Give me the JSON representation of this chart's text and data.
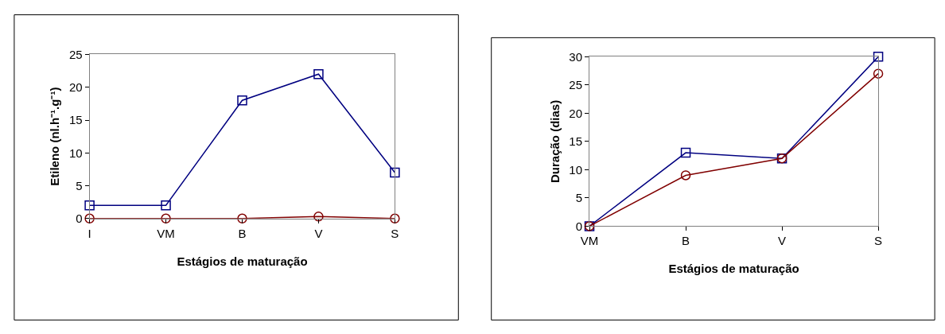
{
  "chart_data": [
    {
      "type": "line",
      "xlabel": "Estágios de maturação",
      "ylabel": "Etileno (nl.h⁻¹.g⁻¹)",
      "categories": [
        "I",
        "VM",
        "B",
        "V",
        "S"
      ],
      "ylim": [
        0,
        25
      ],
      "yticks": [
        0,
        5,
        10,
        15,
        20,
        25
      ],
      "series": [
        {
          "color": "#000080",
          "marker": "square",
          "values": [
            2,
            2,
            18,
            22,
            7
          ]
        },
        {
          "color": "#800000",
          "marker": "circle",
          "values": [
            0,
            0,
            0,
            0.3,
            0
          ]
        }
      ]
    },
    {
      "type": "line",
      "xlabel": "Estágios de maturação",
      "ylabel": "Duração (dias)",
      "categories": [
        "VM",
        "B",
        "V",
        "S"
      ],
      "ylim": [
        0,
        30
      ],
      "yticks": [
        0,
        5,
        10,
        15,
        20,
        25,
        30
      ],
      "series": [
        {
          "color": "#000080",
          "marker": "square",
          "values": [
            0,
            13,
            12,
            30
          ]
        },
        {
          "color": "#800000",
          "marker": "circle",
          "values": [
            0,
            9,
            12,
            27
          ]
        }
      ]
    }
  ]
}
